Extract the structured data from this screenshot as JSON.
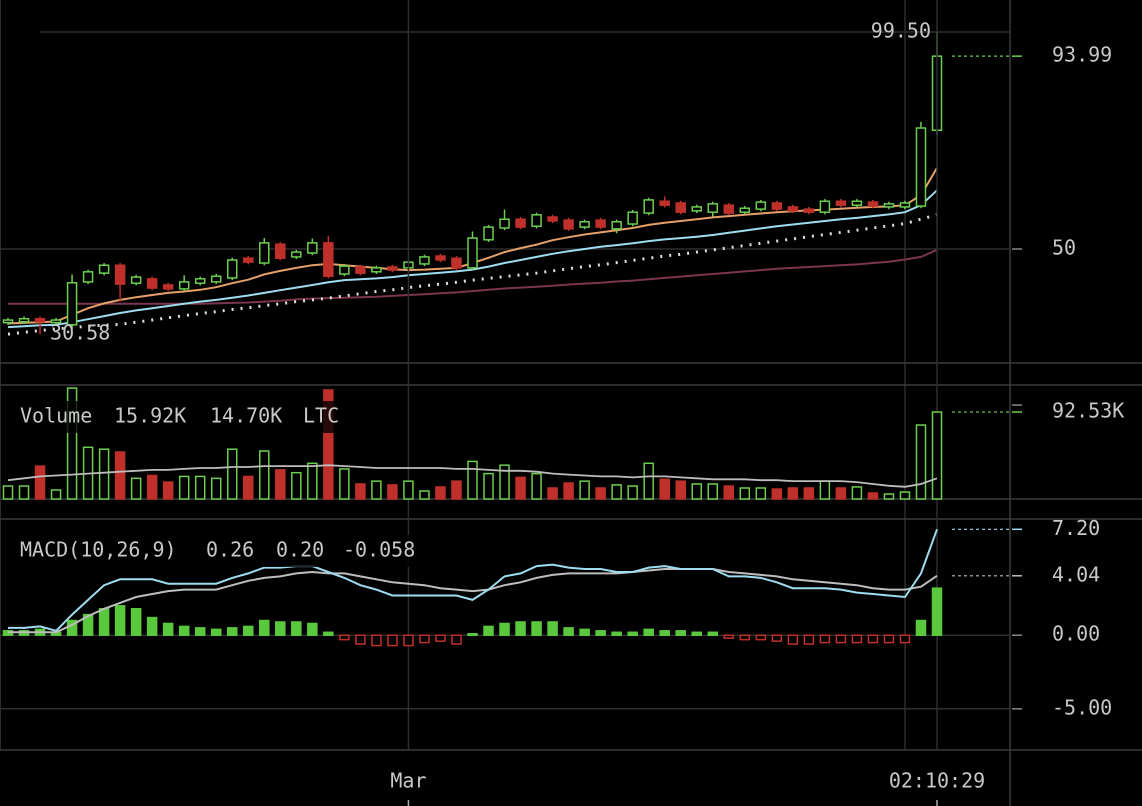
{
  "chart_data": [
    {
      "type": "candlestick",
      "categories": [
        null,
        null,
        null,
        null,
        null,
        null,
        null,
        null,
        null,
        null,
        null,
        null,
        null,
        null,
        null,
        null,
        null,
        null,
        null,
        null,
        null,
        null,
        null,
        null,
        null,
        "Mar",
        null,
        null,
        null,
        null,
        null,
        null,
        null,
        null,
        null,
        null,
        null,
        null,
        null,
        null,
        null,
        null,
        null,
        null,
        null,
        null,
        null,
        null,
        null,
        null,
        null,
        null,
        null,
        null,
        null,
        null,
        null,
        null,
        "02:10:29"
      ],
      "open": [
        33.2,
        33.4,
        34.1,
        33.2,
        32.7,
        42.5,
        44.5,
        46.3,
        42.2,
        43.2,
        41.8,
        40.9,
        42.2,
        42.5,
        43.4,
        47.9,
        46.8,
        51.1,
        48.2,
        49.1,
        51.4,
        44.3,
        45.9,
        44.8,
        45.9,
        45.7,
        46.6,
        48.4,
        47.9,
        45.7,
        52.1,
        54.8,
        56.8,
        55.2,
        57.3,
        56.6,
        55.0,
        56.6,
        54.6,
        55.7,
        58.2,
        60.9,
        60.5,
        58.7,
        58.4,
        60.0,
        58.4,
        59.1,
        60.5,
        59.6,
        59.1,
        58.4,
        60.9,
        60.0,
        60.7,
        59.6,
        59.6,
        59.8,
        77.1
      ],
      "high": [
        34.3,
        34.6,
        34.6,
        34.3,
        44.2,
        45.3,
        46.8,
        46.8,
        44.1,
        43.7,
        42.3,
        44.0,
        43.7,
        44.3,
        48.0,
        48.4,
        52.5,
        51.6,
        49.8,
        52.4,
        53.0,
        46.6,
        46.4,
        46.2,
        46.4,
        47.5,
        48.7,
        48.9,
        48.4,
        54.0,
        55.5,
        59.0,
        57.3,
        58.3,
        57.8,
        57.1,
        56.7,
        57.1,
        56.7,
        58.9,
        61.7,
        62.0,
        61.0,
        60.1,
        60.8,
        60.5,
        59.8,
        61.2,
        61.0,
        60.1,
        59.6,
        61.4,
        61.4,
        61.4,
        61.2,
        60.8,
        61.0,
        79.0,
        99.5
      ],
      "low": [
        32.7,
        32.9,
        30.58,
        32.7,
        32.2,
        42.0,
        44.0,
        38.0,
        41.7,
        40.6,
        40.4,
        40.4,
        41.7,
        42.0,
        42.9,
        46.5,
        46.3,
        47.4,
        47.7,
        48.6,
        43.3,
        43.8,
        44.0,
        44.3,
        44.7,
        45.2,
        46.1,
        47.0,
        45.2,
        45.2,
        51.6,
        54.3,
        54.5,
        54.7,
        55.9,
        54.1,
        54.5,
        54.5,
        53.6,
        55.2,
        57.7,
        59.5,
        57.9,
        58.2,
        57.4,
        57.7,
        57.9,
        58.6,
        58.6,
        58.2,
        57.9,
        57.9,
        59.5,
        59.5,
        59.3,
        59.1,
        59.1,
        59.3,
        76.0
      ],
      "close": [
        33.8,
        34.1,
        33.4,
        33.8,
        42.3,
        44.8,
        46.3,
        42.0,
        43.6,
        41.1,
        40.9,
        42.5,
        43.2,
        43.8,
        47.5,
        47.0,
        51.4,
        47.9,
        49.3,
        51.4,
        43.8,
        46.1,
        44.5,
        45.7,
        45.2,
        47.0,
        48.2,
        47.5,
        45.7,
        52.5,
        55.0,
        56.8,
        55.0,
        57.8,
        56.4,
        54.6,
        56.2,
        55.0,
        56.2,
        58.4,
        61.2,
        60.0,
        58.4,
        59.6,
        60.3,
        58.2,
        59.3,
        60.7,
        59.1,
        58.7,
        58.4,
        60.9,
        60.0,
        60.9,
        59.8,
        60.3,
        60.5,
        77.6,
        93.99
      ],
      "up_color": "#6ccf4e",
      "down_color": "#c0302b",
      "overlays": [
        {
          "color": "#7a3550",
          "style": "solid",
          "values": [
            37.5,
            37.5,
            37.5,
            37.5,
            37.5,
            37.5,
            37.5,
            37.5,
            37.5,
            37.5,
            37.5,
            37.5,
            37.5,
            37.6,
            37.7,
            37.8,
            38.0,
            38.2,
            38.5,
            38.7,
            38.8,
            38.9,
            39.0,
            39.1,
            39.3,
            39.5,
            39.7,
            39.9,
            40.1,
            40.4,
            40.7,
            41.0,
            41.2,
            41.4,
            41.6,
            41.9,
            42.1,
            42.3,
            42.6,
            42.8,
            43.1,
            43.4,
            43.7,
            44.0,
            44.3,
            44.6,
            44.9,
            45.2,
            45.5,
            45.7,
            45.9,
            46.1,
            46.3,
            46.5,
            46.8,
            47.1,
            47.6,
            48.2,
            49.8
          ]
        },
        {
          "color": "#e0e0e0",
          "style": "dotted",
          "values": [
            30.6,
            31.0,
            31.4,
            31.8,
            32.1,
            32.4,
            32.6,
            32.8,
            33.3,
            33.8,
            34.3,
            34.8,
            35.3,
            35.7,
            36.2,
            36.6,
            37.1,
            37.5,
            38.0,
            38.4,
            38.8,
            39.3,
            39.8,
            40.3,
            40.7,
            41.2,
            41.6,
            42.0,
            42.4,
            42.9,
            43.3,
            43.7,
            44.1,
            44.5,
            45.0,
            45.5,
            46.0,
            46.4,
            46.9,
            47.4,
            47.9,
            48.4,
            48.8,
            49.3,
            49.8,
            50.3,
            50.8,
            51.3,
            51.8,
            52.3,
            52.8,
            53.3,
            53.8,
            54.3,
            54.8,
            55.3,
            55.8,
            56.8,
            57.8
          ]
        },
        {
          "color": "#9fdcef",
          "style": "solid",
          "values": [
            32.2,
            32.4,
            32.6,
            32.7,
            33.3,
            34.0,
            34.7,
            35.4,
            36.0,
            36.5,
            37.0,
            37.5,
            38.0,
            38.4,
            38.9,
            39.4,
            40.0,
            40.6,
            41.2,
            41.8,
            42.4,
            42.9,
            43.1,
            43.3,
            43.6,
            44.0,
            44.3,
            44.6,
            44.9,
            45.3,
            46.0,
            46.8,
            47.5,
            48.2,
            48.9,
            49.5,
            50.0,
            50.5,
            50.9,
            51.3,
            51.8,
            52.2,
            52.5,
            52.8,
            53.2,
            53.7,
            54.2,
            54.7,
            55.2,
            55.6,
            56.0,
            56.4,
            56.8,
            57.1,
            57.5,
            57.9,
            58.4,
            60.0,
            63.4
          ]
        },
        {
          "color": "#e5a06a",
          "style": "solid",
          "values": [
            33.0,
            33.2,
            33.3,
            33.5,
            35.0,
            36.5,
            37.6,
            38.4,
            39.0,
            39.5,
            40.0,
            40.3,
            40.7,
            41.3,
            42.2,
            43.0,
            44.2,
            45.0,
            45.7,
            46.3,
            46.6,
            46.3,
            46.0,
            45.7,
            45.4,
            45.2,
            45.3,
            45.5,
            45.7,
            46.8,
            48.0,
            49.3,
            50.2,
            51.0,
            52.0,
            52.7,
            53.3,
            53.8,
            54.3,
            54.8,
            55.5,
            56.0,
            56.4,
            56.8,
            57.2,
            57.5,
            57.8,
            58.1,
            58.4,
            58.6,
            58.8,
            59.0,
            59.2,
            59.4,
            59.6,
            59.7,
            60.0,
            62.3,
            68.5
          ]
        }
      ],
      "ylim": [
        24,
        106.8
      ],
      "yticks": [
        50
      ],
      "annotations": [
        {
          "label": "99.50"
        },
        {
          "label": "30.58"
        }
      ]
    },
    {
      "type": "volume",
      "legend": {
        "title": "Volume",
        "values": [
          "15.92K",
          "14.70K"
        ],
        "unit": "LTC"
      },
      "values": [
        13800,
        13800,
        35000,
        9600,
        118000,
        55000,
        53000,
        50000,
        22000,
        25000,
        18000,
        24000,
        24000,
        22000,
        53000,
        24000,
        51000,
        31000,
        28000,
        38000,
        116000,
        32000,
        16000,
        19000,
        15000,
        19000,
        8500,
        12800,
        19000,
        40000,
        27000,
        36000,
        23000,
        27000,
        11700,
        17000,
        19000,
        11700,
        15000,
        13800,
        38000,
        21000,
        19000,
        16000,
        16000,
        13800,
        11700,
        11700,
        10600,
        11700,
        11700,
        19000,
        11700,
        12800,
        6400,
        5300,
        7400,
        78700,
        92530
      ],
      "last_label": "92.53K",
      "ma": {
        "color": "#bdbdbd",
        "values": [
          20000,
          22000,
          24000,
          25000,
          26000,
          27000,
          28000,
          29000,
          30000,
          31000,
          31000,
          32000,
          33000,
          33000,
          34000,
          34000,
          35000,
          35000,
          35000,
          35000,
          36000,
          35000,
          34000,
          33000,
          33000,
          33000,
          33000,
          33000,
          32000,
          32000,
          31000,
          30000,
          30000,
          29000,
          27000,
          26000,
          25000,
          24000,
          24000,
          23000,
          24000,
          24000,
          23000,
          22000,
          21000,
          21000,
          21000,
          20000,
          20000,
          19000,
          19000,
          19000,
          19000,
          18000,
          16000,
          14000,
          13000,
          16000,
          22000
        ]
      },
      "ylim": [
        0,
        121300
      ]
    },
    {
      "type": "macd",
      "legend": {
        "title": "MACD(10,26,9)",
        "values": [
          "0.26",
          "0.20",
          "-0.058"
        ]
      },
      "macd": {
        "color": "#9fdcef",
        "values": [
          0.5,
          0.5,
          0.6,
          0.3,
          1.4,
          2.4,
          3.4,
          3.8,
          3.8,
          3.8,
          3.5,
          3.5,
          3.5,
          3.5,
          3.9,
          4.2,
          4.6,
          4.6,
          4.7,
          4.7,
          4.3,
          3.9,
          3.4,
          3.1,
          2.7,
          2.7,
          2.7,
          2.7,
          2.7,
          2.4,
          3.1,
          4.0,
          4.2,
          4.7,
          4.8,
          4.6,
          4.5,
          4.5,
          4.3,
          4.3,
          4.6,
          4.7,
          4.5,
          4.5,
          4.5,
          4.0,
          4.0,
          3.9,
          3.6,
          3.2,
          3.2,
          3.2,
          3.1,
          2.9,
          2.8,
          2.7,
          2.6,
          4.2,
          7.2
        ],
        "last_label": "7.20"
      },
      "signal": {
        "color": "#bdbdbd",
        "values": [
          0.2,
          0.2,
          0.2,
          0.2,
          0.7,
          1.3,
          1.8,
          2.2,
          2.6,
          2.8,
          3.0,
          3.1,
          3.1,
          3.1,
          3.4,
          3.7,
          3.9,
          4.0,
          4.2,
          4.3,
          4.2,
          4.2,
          4.0,
          3.8,
          3.6,
          3.5,
          3.4,
          3.2,
          3.1,
          3.0,
          3.1,
          3.4,
          3.6,
          3.9,
          4.1,
          4.2,
          4.2,
          4.2,
          4.2,
          4.3,
          4.4,
          4.5,
          4.5,
          4.5,
          4.5,
          4.3,
          4.2,
          4.1,
          4.0,
          3.8,
          3.7,
          3.6,
          3.5,
          3.4,
          3.2,
          3.1,
          3.1,
          3.3,
          4.04
        ]
      },
      "histogram": [
        0.3,
        0.3,
        0.4,
        0.2,
        1.0,
        1.4,
        1.8,
        2.0,
        1.8,
        1.2,
        0.8,
        0.6,
        0.5,
        0.4,
        0.5,
        0.6,
        1.0,
        0.9,
        0.9,
        0.8,
        0.2,
        -0.3,
        -0.6,
        -0.7,
        -0.7,
        -0.7,
        -0.5,
        -0.4,
        -0.6,
        0.1,
        0.6,
        0.8,
        0.9,
        0.9,
        0.9,
        0.5,
        0.4,
        0.3,
        0.2,
        0.2,
        0.4,
        0.3,
        0.3,
        0.2,
        0.2,
        -0.2,
        -0.3,
        -0.3,
        -0.4,
        -0.6,
        -0.6,
        -0.5,
        -0.5,
        -0.5,
        -0.5,
        -0.5,
        -0.5,
        1.0,
        3.2
      ],
      "ylim": [
        -7.8,
        7.9
      ],
      "yticks": [
        {
          "value": 0,
          "label": "0.00"
        },
        {
          "value": -5,
          "label": "-5.00"
        }
      ]
    }
  ]
}
